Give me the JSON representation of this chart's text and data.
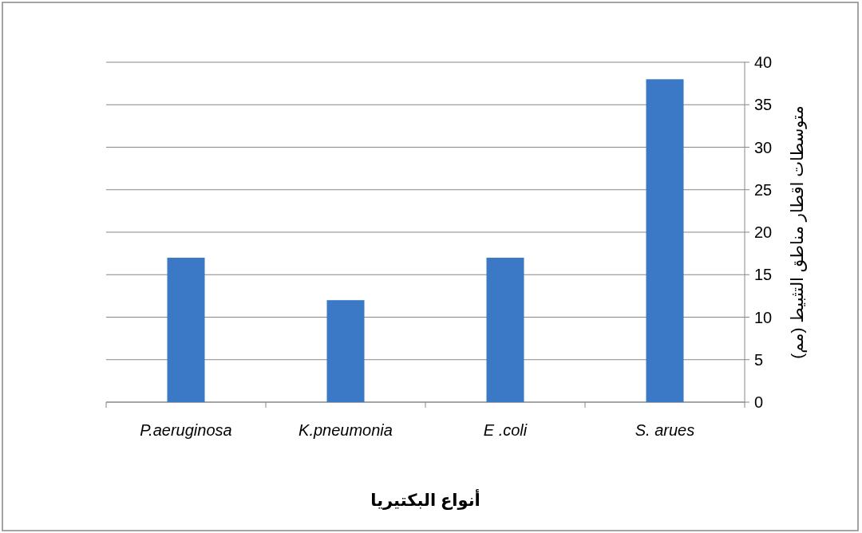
{
  "chart_data": {
    "type": "bar",
    "categories": [
      "P.aeruginosa",
      "K.pneumonia",
      "E .coli",
      "S. arues"
    ],
    "values": [
      17,
      12,
      17,
      38
    ],
    "color": "#3b78c6",
    "xlabel": "أنواع البكتيريا",
    "ylabel": "متوسطات اقطار مناطق التثبيط (مم)",
    "ylim": [
      0,
      40
    ],
    "yticks": [
      0,
      5,
      10,
      15,
      20,
      25,
      30,
      35,
      40
    ],
    "grid": "y"
  }
}
